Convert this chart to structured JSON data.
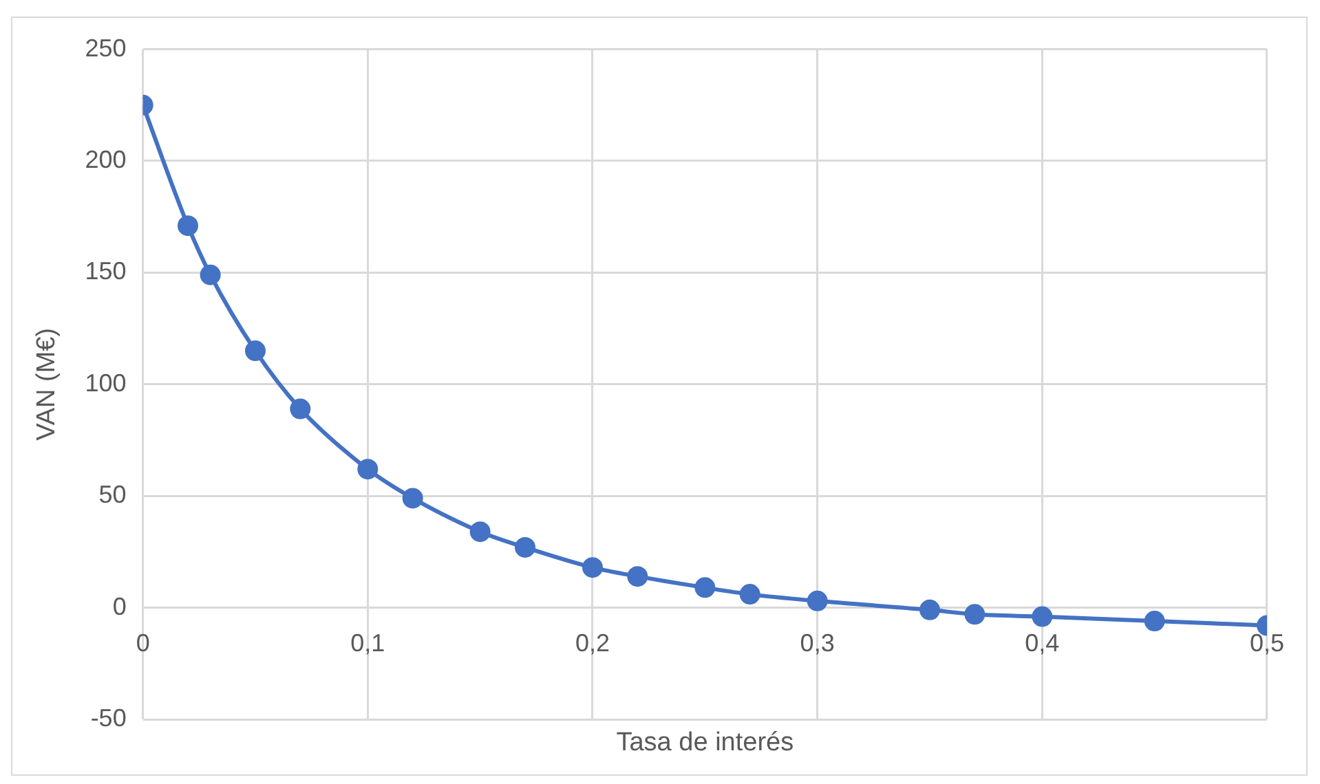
{
  "chart_data": {
    "type": "line",
    "xlabel": "Tasa de interés",
    "ylabel": "VAN (M€)",
    "x": [
      0,
      0.02,
      0.03,
      0.05,
      0.07,
      0.1,
      0.12,
      0.15,
      0.17,
      0.2,
      0.22,
      0.25,
      0.27,
      0.3,
      0.35,
      0.37,
      0.4,
      0.45,
      0.5
    ],
    "series": [
      {
        "color": "#4472c4",
        "values": [
          225,
          171,
          149,
          115,
          89,
          62,
          49,
          34,
          27,
          18,
          14,
          9,
          6,
          3,
          -1,
          -3,
          -4,
          -6,
          -8
        ]
      }
    ],
    "xlim": [
      0,
      0.5
    ],
    "xticks": [
      0,
      {
        "value": 0.1,
        "label": "0,1"
      },
      {
        "value": 0.2,
        "label": "0,2"
      },
      {
        "value": 0.3,
        "label": "0,3"
      },
      {
        "value": 0.4,
        "label": "0,4"
      },
      {
        "value": 0.5,
        "label": "0,5"
      }
    ],
    "ylim": [
      -50,
      250
    ],
    "yticks": [
      -50,
      0,
      50,
      100,
      150,
      200,
      250
    ],
    "grid": true,
    "legend": false,
    "marker": "circle",
    "line_style": "solid"
  }
}
